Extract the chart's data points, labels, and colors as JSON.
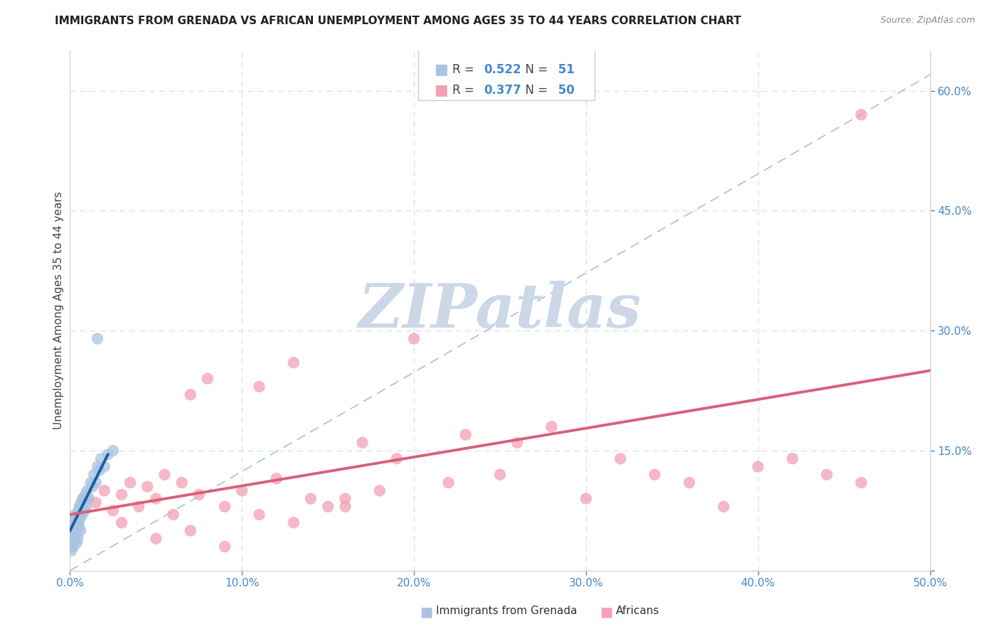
{
  "title": "IMMIGRANTS FROM GRENADA VS AFRICAN UNEMPLOYMENT AMONG AGES 35 TO 44 YEARS CORRELATION CHART",
  "source": "Source: ZipAtlas.com",
  "ylabel": "Unemployment Among Ages 35 to 44 years",
  "xlim": [
    0,
    50
  ],
  "ylim": [
    0,
    65
  ],
  "x_ticks": [
    0,
    10,
    20,
    30,
    40,
    50
  ],
  "y_right_ticks": [
    0,
    15,
    30,
    45,
    60
  ],
  "R_blue": 0.522,
  "N_blue": 51,
  "R_pink": 0.377,
  "N_pink": 50,
  "legend_label_blue": "Immigrants from Grenada",
  "legend_label_pink": "Africans",
  "blue_scatter_color": "#aac4e0",
  "pink_scatter_color": "#f4a0b4",
  "blue_line_color": "#1a5ca8",
  "pink_line_color": "#d9607a",
  "dashed_line_color": "#a8c0dc",
  "grid_color": "#d8e4f0",
  "background_color": "#ffffff",
  "watermark_text": "ZIPatlas",
  "watermark_color": "#ccd8e8",
  "title_color": "#222222",
  "source_color": "#888888",
  "axis_label_color": "#4488cc",
  "ylabel_color": "#444444",
  "blue_x": [
    0.05,
    0.08,
    0.1,
    0.12,
    0.15,
    0.18,
    0.2,
    0.22,
    0.25,
    0.28,
    0.3,
    0.32,
    0.35,
    0.38,
    0.4,
    0.42,
    0.45,
    0.48,
    0.5,
    0.52,
    0.55,
    0.58,
    0.6,
    0.62,
    0.65,
    0.7,
    0.75,
    0.8,
    0.85,
    0.9,
    0.95,
    1.0,
    1.1,
    1.2,
    1.3,
    1.4,
    1.5,
    1.6,
    1.7,
    1.8,
    2.0,
    2.2,
    2.5,
    0.15,
    0.25,
    0.35,
    0.45,
    0.55,
    0.65,
    0.75,
    1.6
  ],
  "blue_y": [
    3.0,
    2.5,
    4.0,
    3.5,
    5.0,
    4.5,
    3.0,
    6.0,
    5.5,
    4.0,
    7.0,
    5.0,
    4.5,
    6.5,
    3.5,
    5.0,
    4.0,
    6.0,
    7.5,
    5.5,
    8.0,
    6.5,
    7.0,
    5.0,
    8.5,
    7.0,
    9.0,
    8.0,
    7.5,
    9.5,
    8.0,
    10.0,
    9.0,
    11.0,
    10.5,
    12.0,
    11.0,
    13.0,
    12.5,
    14.0,
    13.0,
    14.5,
    15.0,
    5.5,
    6.0,
    6.5,
    7.0,
    7.5,
    8.0,
    9.0,
    29.0
  ],
  "pink_x": [
    0.5,
    1.0,
    1.5,
    2.0,
    2.5,
    3.0,
    3.5,
    4.0,
    4.5,
    5.0,
    5.5,
    6.0,
    6.5,
    7.0,
    7.5,
    8.0,
    9.0,
    10.0,
    11.0,
    12.0,
    13.0,
    14.0,
    15.0,
    16.0,
    17.0,
    18.0,
    19.0,
    20.0,
    22.0,
    23.0,
    25.0,
    26.0,
    28.0,
    30.0,
    32.0,
    34.0,
    36.0,
    38.0,
    40.0,
    42.0,
    44.0,
    46.0,
    3.0,
    5.0,
    7.0,
    9.0,
    11.0,
    13.0,
    16.0,
    46.0
  ],
  "pink_y": [
    7.0,
    9.0,
    8.5,
    10.0,
    7.5,
    9.5,
    11.0,
    8.0,
    10.5,
    9.0,
    12.0,
    7.0,
    11.0,
    22.0,
    9.5,
    24.0,
    8.0,
    10.0,
    23.0,
    11.5,
    26.0,
    9.0,
    8.0,
    9.0,
    16.0,
    10.0,
    14.0,
    29.0,
    11.0,
    17.0,
    12.0,
    16.0,
    18.0,
    9.0,
    14.0,
    12.0,
    11.0,
    8.0,
    13.0,
    14.0,
    12.0,
    11.0,
    6.0,
    4.0,
    5.0,
    3.0,
    7.0,
    6.0,
    8.0,
    57.0
  ],
  "blue_line_x": [
    0.0,
    2.2
  ],
  "blue_line_y": [
    5.0,
    14.5
  ],
  "pink_line_x": [
    0.0,
    50.0
  ],
  "pink_line_y": [
    7.0,
    25.0
  ],
  "diag_line_x": [
    0.0,
    50.0
  ],
  "diag_line_y": [
    0.0,
    62.0
  ]
}
